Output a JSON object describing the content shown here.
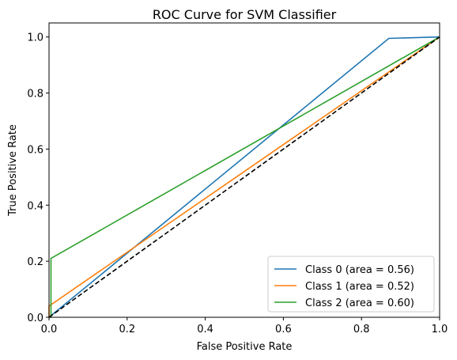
{
  "chart_data": {
    "type": "line",
    "title": "ROC Curve for SVM Classifier",
    "xlabel": "False Positive Rate",
    "ylabel": "True Positive Rate",
    "xlim": [
      0.0,
      1.0
    ],
    "ylim": [
      0.0,
      1.05
    ],
    "xticks": [
      "0.0",
      "0.2",
      "0.4",
      "0.6",
      "0.8",
      "1.0"
    ],
    "yticks": [
      "0.0",
      "0.2",
      "0.4",
      "0.6",
      "0.8",
      "1.0"
    ],
    "grid": false,
    "legend_position": "lower-right",
    "series": [
      {
        "name": "Class 0 (area = 0.56)",
        "color": "#1f77b4",
        "x": [
          0.0,
          0.87,
          1.0
        ],
        "y": [
          0.0,
          0.995,
          1.0
        ]
      },
      {
        "name": "Class 1 (area = 0.52)",
        "color": "#ff7f0e",
        "x": [
          0.0,
          0.0,
          1.0
        ],
        "y": [
          0.0,
          0.04,
          1.0
        ]
      },
      {
        "name": "Class 2 (area = 0.60)",
        "color": "#2ca02c",
        "x": [
          0.0,
          0.005,
          0.005,
          1.0
        ],
        "y": [
          0.0,
          0.0,
          0.21,
          1.0
        ]
      }
    ],
    "reference_line": {
      "color": "#000000",
      "style": "dashed",
      "x": [
        0.0,
        1.0
      ],
      "y": [
        0.0,
        1.0
      ]
    }
  }
}
